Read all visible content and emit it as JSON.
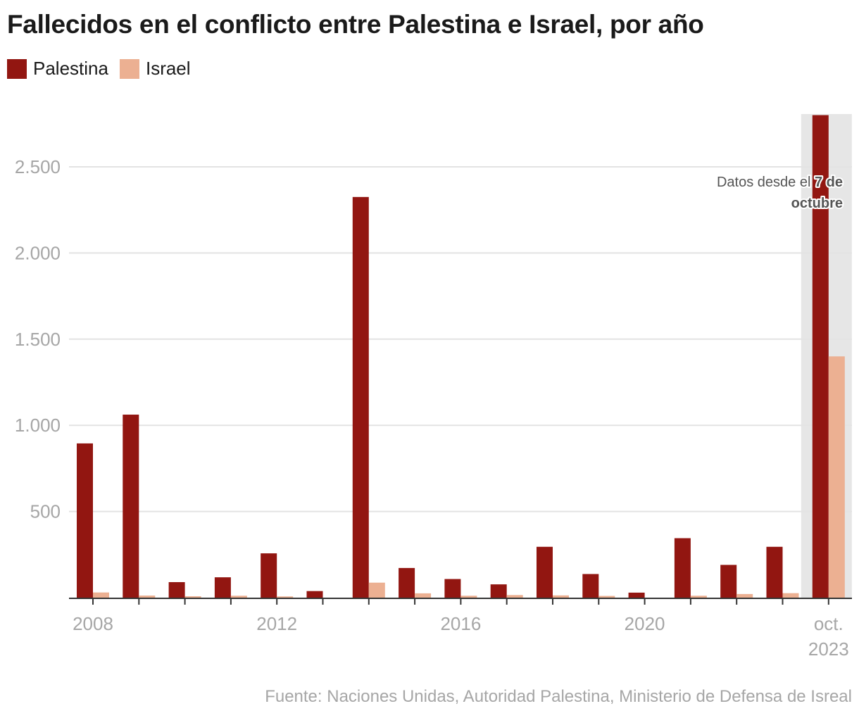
{
  "title": "Fallecidos en el conflicto entre Palestina e Israel, por año",
  "legend": [
    {
      "label": "Palestina",
      "color": "#921611"
    },
    {
      "label": "Israel",
      "color": "#ecb092"
    }
  ],
  "source": "Fuente: Naciones Unidas, Autoridad Palestina, Ministerio de Defensa de Isreal",
  "annotation": {
    "text_regular": "Datos desde el ",
    "text_bold_1": "7 de",
    "text_bold_2": "octubre"
  },
  "chart_data": {
    "type": "bar",
    "title": "Fallecidos en el conflicto entre Palestina e Israel, por año",
    "xlabel": "",
    "ylabel": "",
    "ylim": [
      0,
      2800
    ],
    "grid": true,
    "legend_position": "top-left",
    "yticks": [
      500,
      1000,
      1500,
      2000,
      2500
    ],
    "ytick_labels": [
      "500",
      "1.000",
      "1.500",
      "2.000",
      "2.500"
    ],
    "categories": [
      "2008",
      "2009",
      "2010",
      "2011",
      "2012",
      "2013",
      "2014",
      "2015",
      "2016",
      "2017",
      "2018",
      "2019",
      "2020",
      "2021",
      "2022",
      "2023",
      "oct. 2023"
    ],
    "xtick_labels": [
      {
        "index": 0,
        "label": "2008"
      },
      {
        "index": 4,
        "label": "2012"
      },
      {
        "index": 8,
        "label": "2016"
      },
      {
        "index": 12,
        "label": "2020"
      },
      {
        "index": 16,
        "label": "oct.\n2023"
      }
    ],
    "highlight": {
      "category": "oct. 2023",
      "color": "#e6e6e6",
      "note": "Datos desde el 7 de octubre",
      "clipped_series": "Palestina"
    },
    "series": [
      {
        "name": "Palestina",
        "color": "#921611",
        "values": [
          895,
          1062,
          90,
          118,
          257,
          38,
          2325,
          172,
          108,
          77,
          295,
          137,
          29,
          345,
          190,
          295,
          2808
        ]
      },
      {
        "name": "Israel",
        "color": "#ecb092",
        "values": [
          30,
          12,
          8,
          11,
          7,
          0,
          87,
          25,
          11,
          15,
          13,
          10,
          0,
          11,
          21,
          26,
          1400
        ]
      }
    ]
  }
}
